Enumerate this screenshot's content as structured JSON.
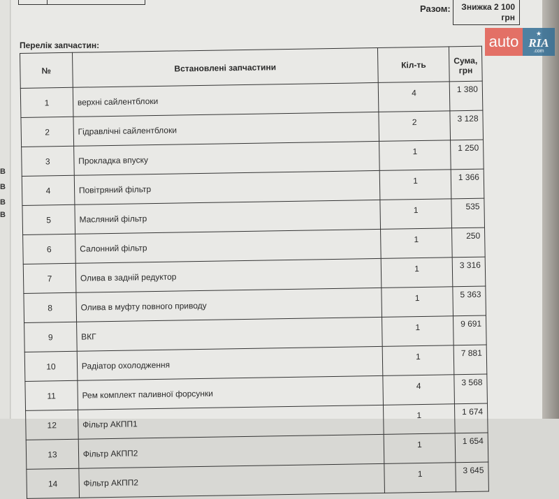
{
  "summary": {
    "total_label": "Разом:",
    "discount_line1": "Знижка 2 100",
    "discount_line2": "грн"
  },
  "watermark": {
    "auto": "auto",
    "ria": "RIA",
    "com": ".com",
    "colors": {
      "auto": "#e25b50",
      "ria": "#356f95"
    }
  },
  "parts": {
    "title": "Перелік запчастин:",
    "headers": [
      "№",
      "Встановлені запчастини",
      "Кіл-ть",
      "Сума, грн"
    ],
    "rows": [
      {
        "no": "1",
        "name": "верхні сайлентблоки",
        "qty": "4",
        "sum": "1 380"
      },
      {
        "no": "2",
        "name": "Гідравлічні сайлентблоки",
        "qty": "2",
        "sum": "3 128"
      },
      {
        "no": "3",
        "name": "Прокладка впуску",
        "qty": "1",
        "sum": "1 250"
      },
      {
        "no": "4",
        "name": "Повітряний фільтр",
        "qty": "1",
        "sum": "1 366"
      },
      {
        "no": "5",
        "name": "Масляний фільтр",
        "qty": "1",
        "sum": "535"
      },
      {
        "no": "6",
        "name": "Салонний фільтр",
        "qty": "1",
        "sum": "250"
      },
      {
        "no": "7",
        "name": "Олива в задній редуктор",
        "qty": "1",
        "sum": "3 316"
      },
      {
        "no": "8",
        "name": "Олива в муфту повного приводу",
        "qty": "1",
        "sum": "5 363"
      },
      {
        "no": "9",
        "name": "ВКГ",
        "qty": "1",
        "sum": "9 691"
      },
      {
        "no": "10",
        "name": "Радіатор охолодження",
        "qty": "1",
        "sum": "7 881"
      },
      {
        "no": "11",
        "name": "Рем комплект паливної форсунки",
        "qty": "4",
        "sum": "3 568"
      },
      {
        "no": "12",
        "name": "Фільтр АКПП1",
        "qty": "1",
        "sum": "1 674"
      },
      {
        "no": "13",
        "name": "Фільтр АКПП2",
        "qty": "1",
        "sum": "1 654"
      },
      {
        "no": "14",
        "name": "Фільтр АКПП2",
        "qty": "1",
        "sum": "3 645"
      }
    ]
  },
  "left_edge_letters": [
    "В",
    "В",
    "В",
    "В"
  ]
}
